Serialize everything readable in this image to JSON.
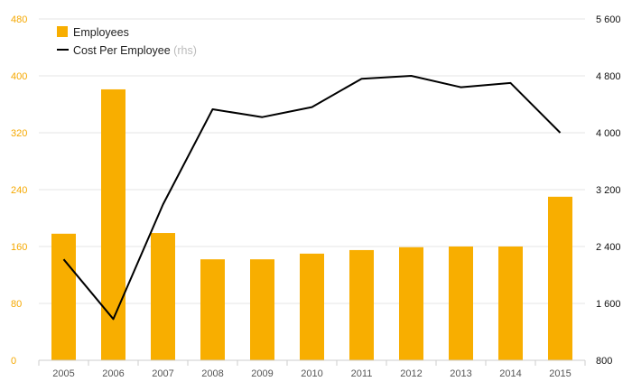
{
  "chart_data": {
    "type": "bar",
    "categories": [
      "2005",
      "2006",
      "2007",
      "2008",
      "2009",
      "2010",
      "2011",
      "2012",
      "2013",
      "2014",
      "2015"
    ],
    "series": [
      {
        "name": "Employees",
        "type": "bar",
        "axis": "left",
        "color": "#f8ae00",
        "values": [
          178,
          381,
          179,
          142,
          142,
          150,
          155,
          159,
          160,
          160,
          230
        ]
      },
      {
        "name": "Cost Per Employee",
        "type": "line",
        "axis": "right",
        "color": "#000000",
        "values": [
          2220,
          1380,
          2990,
          4330,
          4220,
          4360,
          4760,
          4800,
          4640,
          4700,
          4000
        ]
      }
    ],
    "legend": {
      "position": "top-left",
      "items": [
        {
          "label": "Employees",
          "suffix": ""
        },
        {
          "label": "Cost Per Employee",
          "suffix": "(rhs)"
        }
      ]
    },
    "y_left": {
      "ylim": [
        0,
        480
      ],
      "ticks": [
        0,
        80,
        160,
        240,
        320,
        400,
        480
      ],
      "tick_labels": [
        "0",
        "80",
        "160",
        "240",
        "320",
        "400",
        "480"
      ],
      "color": "#f5a800"
    },
    "y_right": {
      "ylim": [
        800,
        5600
      ],
      "ticks": [
        800,
        1600,
        2400,
        3200,
        4000,
        4800,
        5600
      ],
      "tick_labels": [
        "800",
        "1 600",
        "2 400",
        "3 200",
        "4 000",
        "4 800",
        "5 600"
      ],
      "color": "#111111"
    },
    "title": "",
    "xlabel": "",
    "ylabel": "",
    "grid": true
  }
}
